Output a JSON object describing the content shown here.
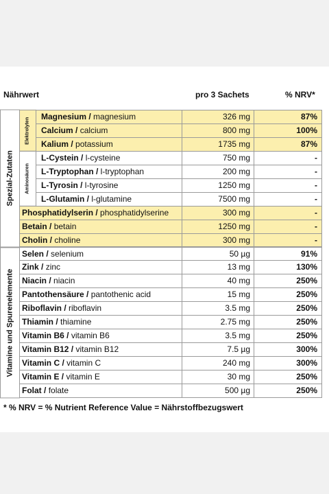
{
  "header": {
    "nutrient": "Nährwert",
    "amount": "pro 3 Sachets",
    "nrv": "% NRV*"
  },
  "sections": [
    {
      "label": "Spezial-Zutaten",
      "groups": [
        {
          "label": "Elektrolyten",
          "highlight": true,
          "rows": [
            {
              "name": "Magnesium /",
              "translation": "magnesium",
              "amount": "326 mg",
              "nrv": "87%"
            },
            {
              "name": "Calcium /",
              "translation": "calcium",
              "amount": "800 mg",
              "nrv": "100%"
            },
            {
              "name": "Kalium /",
              "translation": "potassium",
              "amount": "1735 mg",
              "nrv": "87%"
            }
          ]
        },
        {
          "label": "Aminosäuren",
          "highlight": false,
          "rows": [
            {
              "name": "L-Cystein /",
              "translation": "l-cysteine",
              "amount": "750 mg",
              "nrv": "-"
            },
            {
              "name": "L-Tryptophan /",
              "translation": "l-tryptophan",
              "amount": "200 mg",
              "nrv": "-"
            },
            {
              "name": "L-Tyrosin /",
              "translation": "l-tyrosine",
              "amount": "1250 mg",
              "nrv": "-"
            },
            {
              "name": "L-Glutamin /",
              "translation": "l-glutamine",
              "amount": "7500 mg",
              "nrv": "-"
            }
          ]
        },
        {
          "highlight": true,
          "rows": [
            {
              "name": "Phosphatidylserin /",
              "translation": "phosphatidylserine",
              "amount": "300 mg",
              "nrv": "-"
            },
            {
              "name": "Betain /",
              "translation": "betain",
              "amount": "1250 mg",
              "nrv": "-"
            },
            {
              "name": "Cholin /",
              "translation": "choline",
              "amount": "300 mg",
              "nrv": "-"
            }
          ]
        }
      ]
    },
    {
      "label": "Vitamine und Spurenelemente",
      "groups": [
        {
          "highlight": false,
          "rows": [
            {
              "name": "Selen /",
              "translation": "selenium",
              "amount": "50 µg",
              "nrv": "91%"
            },
            {
              "name": "Zink /",
              "translation": "zinc",
              "amount": "13 mg",
              "nrv": "130%"
            },
            {
              "name": "Niacin /",
              "translation": "niacin",
              "amount": "40 mg",
              "nrv": "250%"
            },
            {
              "name": "Pantothensäure /",
              "translation": "pantothenic acid",
              "amount": "15 mg",
              "nrv": "250%"
            },
            {
              "name": "Riboflavin /",
              "translation": "riboflavin",
              "amount": "3.5 mg",
              "nrv": "250%"
            },
            {
              "name": "Thiamin /",
              "translation": "thiamine",
              "amount": "2.75 mg",
              "nrv": "250%"
            },
            {
              "name": "Vitamin B6 /",
              "translation": "vitamin B6",
              "amount": "3.5 mg",
              "nrv": "250%"
            },
            {
              "name": "Vitamin B12 /",
              "translation": "vitamin B12",
              "amount": "7.5 µg",
              "nrv": "300%"
            },
            {
              "name": "Vitamin C /",
              "translation": "vitamin C",
              "amount": "240 mg",
              "nrv": "300%"
            },
            {
              "name": "Vitamin E /",
              "translation": "vitamin E",
              "amount": "30 mg",
              "nrv": "250%"
            },
            {
              "name": "Folat /",
              "translation": "folate",
              "amount": "500 µg",
              "nrv": "250%"
            }
          ]
        }
      ]
    }
  ],
  "footnote": "* % NRV = % Nutrient Reference Value = Nährstoffbezugswert"
}
